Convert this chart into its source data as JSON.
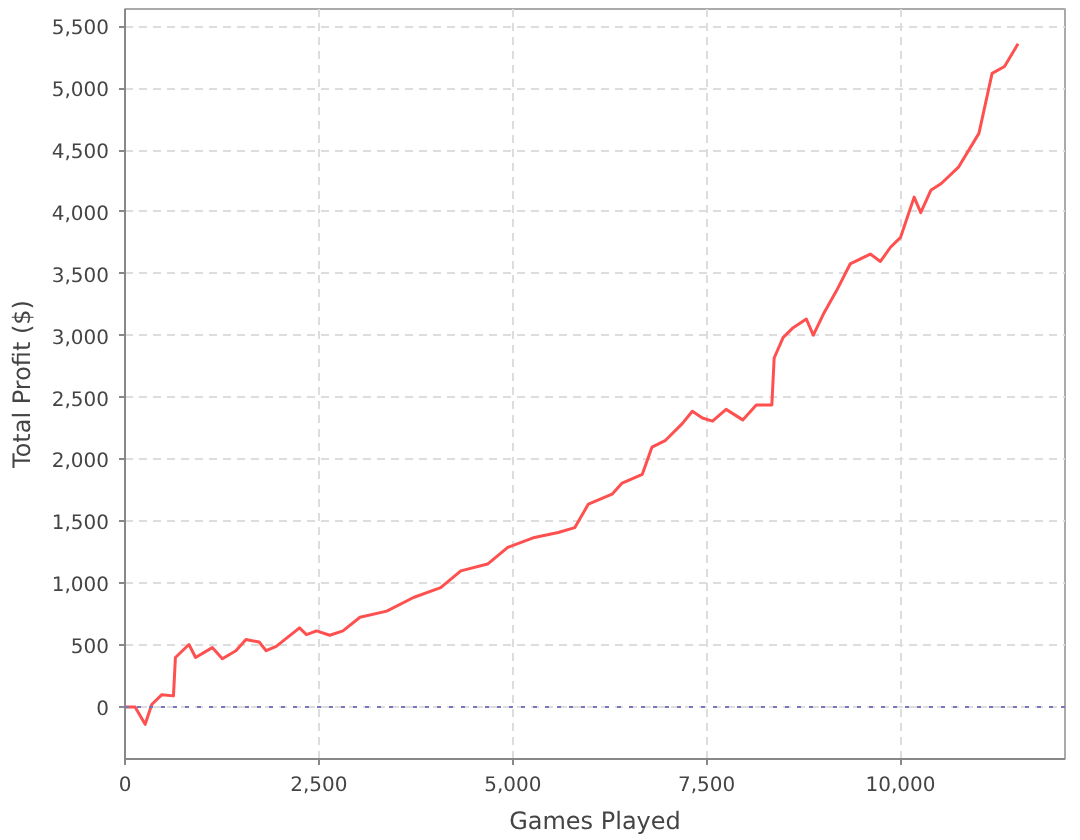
{
  "chart_data": {
    "type": "line",
    "xlabel": "Games Played",
    "ylabel": "Total Profit ($)",
    "xlim": [
      0,
      12120
    ],
    "ylim": [
      -420,
      5640
    ],
    "xticks": [
      0,
      {
        "value": 2500,
        "label": "2,500"
      },
      {
        "value": 5000,
        "label": "5,000"
      },
      {
        "value": 7500,
        "label": "7,500"
      },
      {
        "value": 10000,
        "label": "10,000"
      }
    ],
    "yticks": [
      0,
      500,
      {
        "value": 1000,
        "label": "1,000"
      },
      {
        "value": 1500,
        "label": "1,500"
      },
      {
        "value": 2000,
        "label": "2,000"
      },
      {
        "value": 2500,
        "label": "2,500"
      },
      {
        "value": 3000,
        "label": "3,000"
      },
      {
        "value": 3500,
        "label": "3,500"
      },
      {
        "value": 4000,
        "label": "4,000"
      },
      {
        "value": 4500,
        "label": "4,500"
      },
      {
        "value": 5000,
        "label": "5,000"
      },
      {
        "value": 5500,
        "label": "5,500"
      }
    ],
    "grid": true,
    "marker": "none",
    "line_style": "solid",
    "ref_lines": [
      {
        "axis": "y",
        "value": 0,
        "color": "#7777bb",
        "line_style": "dotted"
      }
    ],
    "series": [
      {
        "color": "#ff5050",
        "x": [
          0,
          130,
          260,
          345,
          475,
          625,
          650,
          825,
          910,
          1125,
          1255,
          1430,
          1560,
          1730,
          1820,
          1950,
          2250,
          2340,
          2470,
          2640,
          2810,
          3030,
          3375,
          3720,
          4070,
          4330,
          4675,
          4935,
          5280,
          5585,
          5800,
          5975,
          6280,
          6410,
          6670,
          6795,
          6970,
          7185,
          7315,
          7445,
          7575,
          7750,
          7965,
          8140,
          8340,
          8370,
          8485,
          8615,
          8785,
          8875,
          9005,
          9175,
          9350,
          9610,
          9740,
          9870,
          10000,
          10175,
          10260,
          10390,
          10525,
          10750,
          11010,
          11180,
          11340,
          11515
        ],
        "values": [
          0,
          0,
          -140,
          20,
          100,
          90,
          400,
          505,
          400,
          480,
          390,
          455,
          545,
          525,
          455,
          490,
          640,
          585,
          615,
          580,
          615,
          725,
          775,
          885,
          965,
          1100,
          1155,
          1290,
          1370,
          1410,
          1450,
          1640,
          1720,
          1810,
          1880,
          2100,
          2155,
          2290,
          2390,
          2335,
          2310,
          2405,
          2320,
          2440,
          2440,
          2820,
          2985,
          3065,
          3135,
          3005,
          3175,
          3365,
          3580,
          3660,
          3600,
          3715,
          3795,
          4120,
          3995,
          4175,
          4230,
          4365,
          4635,
          5120,
          5175,
          5360
        ]
      }
    ]
  }
}
